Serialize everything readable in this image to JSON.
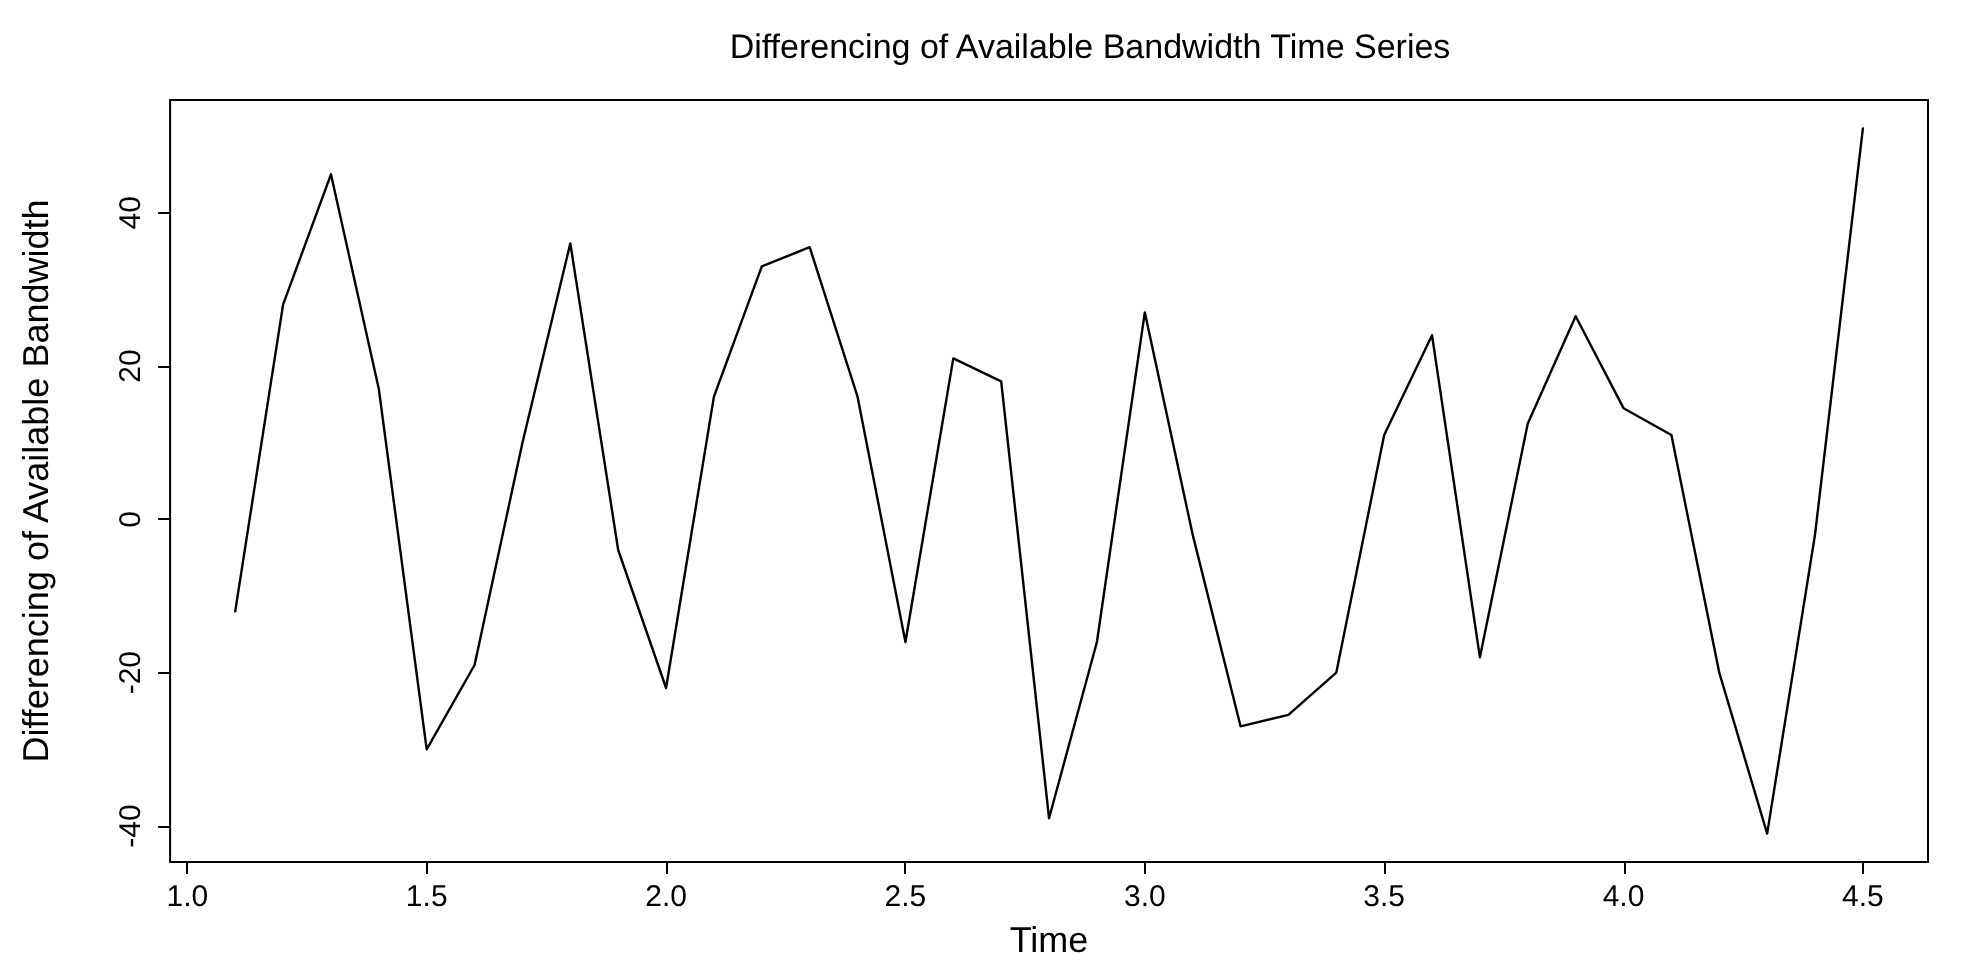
{
  "chart_data": {
    "type": "line",
    "title": "Differencing of Available Bandwidth Time Series",
    "xlabel": "Time",
    "ylabel": "Differencing of Available Bandwidth",
    "x": [
      1.1,
      1.2,
      1.3,
      1.4,
      1.5,
      1.6,
      1.7,
      1.8,
      1.9,
      2.0,
      2.1,
      2.2,
      2.3,
      2.4,
      2.5,
      2.6,
      2.7,
      2.8,
      2.9,
      3.0,
      3.1,
      3.2,
      3.3,
      3.4,
      3.5,
      3.6,
      3.7,
      3.8,
      3.9,
      4.0,
      4.1,
      4.2,
      4.3,
      4.4,
      4.5
    ],
    "series": [
      {
        "color": "#000000",
        "values": [
          -12,
          28,
          45,
          17,
          -30,
          -19,
          10,
          36,
          -4,
          -22,
          16,
          33,
          35.5,
          16,
          -16,
          21,
          18,
          -39,
          -16,
          27,
          -2,
          -27,
          -25.5,
          -20,
          11,
          24,
          -18,
          12.5,
          26.5,
          14.5,
          11,
          -20,
          -41,
          -2,
          51
        ]
      }
    ],
    "xlim": [
      0.964,
      4.636
    ],
    "xticks": [
      {
        "value": 1,
        "label": "1.0"
      },
      {
        "value": 1.5,
        "label": "1.5"
      },
      {
        "value": 2,
        "label": "2.0"
      },
      {
        "value": 2.5,
        "label": "2.5"
      },
      {
        "value": 3,
        "label": "3.0"
      },
      {
        "value": 3.5,
        "label": "3.5"
      },
      {
        "value": 4,
        "label": "4.0"
      },
      {
        "value": 4.5,
        "label": "4.5"
      }
    ],
    "ylim": [
      -44.7,
      54.7
    ],
    "yticks": [
      -40,
      -20,
      0,
      20,
      40
    ],
    "marker": "none",
    "line_style": "solid"
  }
}
